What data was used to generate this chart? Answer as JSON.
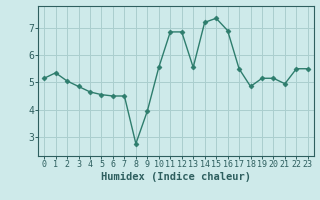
{
  "x": [
    0,
    1,
    2,
    3,
    4,
    5,
    6,
    7,
    8,
    9,
    10,
    11,
    12,
    13,
    14,
    15,
    16,
    17,
    18,
    19,
    20,
    21,
    22,
    23
  ],
  "y": [
    5.15,
    5.35,
    5.05,
    4.85,
    4.65,
    4.55,
    4.5,
    4.5,
    2.75,
    3.95,
    5.55,
    6.85,
    6.85,
    5.55,
    7.2,
    7.35,
    6.9,
    5.5,
    4.85,
    5.15,
    5.15,
    4.95,
    5.5,
    5.5
  ],
  "line_color": "#2e7d6d",
  "marker": "D",
  "marker_size": 2.5,
  "line_width": 1.0,
  "xlabel": "Humidex (Indice chaleur)",
  "xlabel_fontsize": 7.5,
  "background_color": "#ceeaea",
  "grid_color": "#aacece",
  "tick_color": "#2e5f5f",
  "spine_color": "#2e5f5f",
  "xlim": [
    -0.5,
    23.5
  ],
  "ylim": [
    2.3,
    7.8
  ],
  "yticks": [
    3,
    4,
    5,
    6,
    7
  ],
  "xticks": [
    0,
    1,
    2,
    3,
    4,
    5,
    6,
    7,
    8,
    9,
    10,
    11,
    12,
    13,
    14,
    15,
    16,
    17,
    18,
    19,
    20,
    21,
    22,
    23
  ],
  "tick_fontsize": 6.0,
  "ytick_fontsize": 7.0
}
